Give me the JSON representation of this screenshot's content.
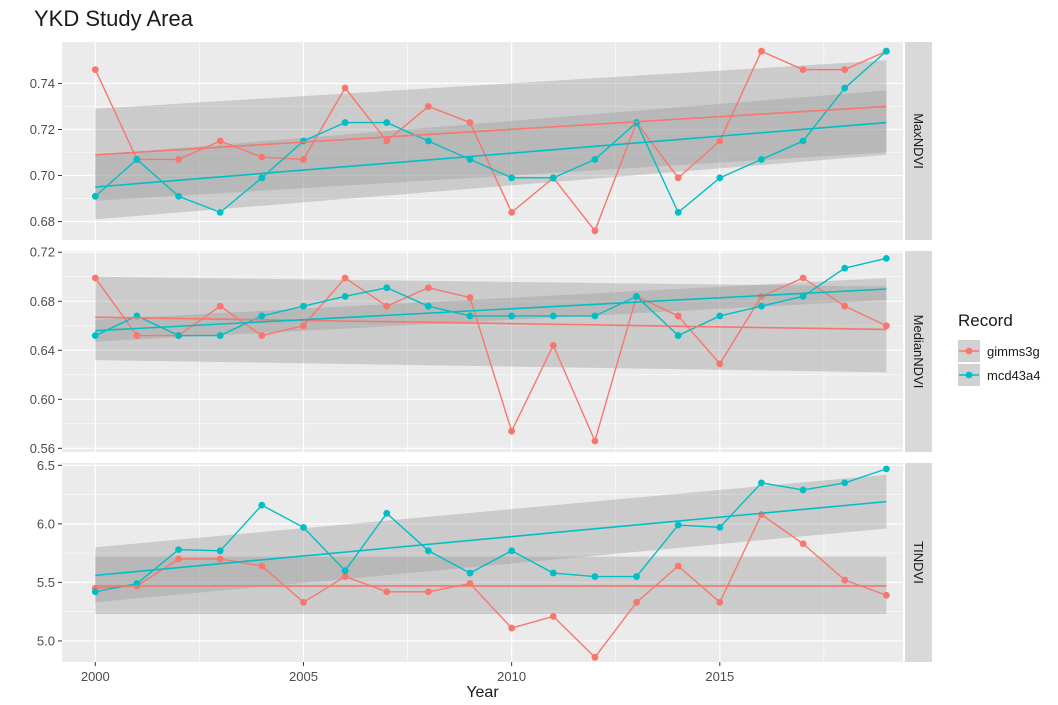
{
  "chart_data": {
    "type": "line",
    "title": "YKD Study Area",
    "xlabel": "Year",
    "x_ticks": [
      2000,
      2005,
      2010,
      2015
    ],
    "x_range": [
      1999.2,
      2019.4
    ],
    "grid": true,
    "legend": {
      "title": "Record",
      "position": "right",
      "entries": [
        {
          "name": "gimms3g",
          "color": "#F8766D"
        },
        {
          "name": "mcd43a4",
          "color": "#00BFC4"
        }
      ]
    },
    "years": [
      2000,
      2001,
      2002,
      2003,
      2004,
      2005,
      2006,
      2007,
      2008,
      2009,
      2010,
      2011,
      2012,
      2013,
      2014,
      2015,
      2016,
      2017,
      2018,
      2019
    ],
    "panels": [
      {
        "strip": "MaxNDVI",
        "y_range": [
          0.672,
          0.758
        ],
        "y_ticks": [
          0.68,
          0.7,
          0.72,
          0.74
        ],
        "y_tick_labels": [
          "0.68",
          "0.70",
          "0.72",
          "0.74"
        ],
        "series": [
          {
            "name": "gimms3g",
            "color": "#F8766D",
            "values": [
              0.746,
              0.707,
              0.707,
              0.715,
              0.708,
              0.707,
              0.738,
              0.715,
              0.73,
              0.723,
              0.684,
              0.699,
              0.676,
              0.723,
              0.699,
              0.715,
              0.754,
              0.746,
              0.746,
              0.754
            ],
            "trend": [
              0.709,
              0.73
            ],
            "band_lo": [
              0.689,
              0.71
            ],
            "band_hi": [
              0.729,
              0.75
            ]
          },
          {
            "name": "mcd43a4",
            "color": "#00BFC4",
            "values": [
              0.691,
              0.707,
              0.691,
              0.684,
              0.699,
              0.715,
              0.723,
              0.723,
              0.715,
              0.707,
              0.699,
              0.699,
              0.707,
              0.723,
              0.684,
              0.699,
              0.707,
              0.715,
              0.738,
              0.754
            ],
            "trend": [
              0.695,
              0.723
            ],
            "band_lo": [
              0.681,
              0.709
            ],
            "band_hi": [
              0.709,
              0.737
            ]
          }
        ]
      },
      {
        "strip": "MedianNDVI",
        "y_range": [
          0.557,
          0.721
        ],
        "y_ticks": [
          0.56,
          0.6,
          0.64,
          0.68,
          0.72
        ],
        "y_tick_labels": [
          "0.56",
          "0.60",
          "0.64",
          "0.68",
          "0.72"
        ],
        "series": [
          {
            "name": "gimms3g",
            "color": "#F8766D",
            "values": [
              0.699,
              0.652,
              0.652,
              0.676,
              0.652,
              0.66,
              0.699,
              0.676,
              0.691,
              0.683,
              0.574,
              0.644,
              0.566,
              0.684,
              0.668,
              0.629,
              0.684,
              0.699,
              0.676,
              0.66
            ],
            "trend": [
              0.667,
              0.657
            ],
            "band_lo": [
              0.632,
              0.622
            ],
            "band_hi": [
              0.7,
              0.692
            ]
          },
          {
            "name": "mcd43a4",
            "color": "#00BFC4",
            "values": [
              0.652,
              0.668,
              0.652,
              0.652,
              0.668,
              0.676,
              0.684,
              0.691,
              0.676,
              0.668,
              0.668,
              0.668,
              0.668,
              0.684,
              0.652,
              0.668,
              0.676,
              0.684,
              0.707,
              0.715
            ],
            "trend": [
              0.656,
              0.69
            ],
            "band_lo": [
              0.647,
              0.681
            ],
            "band_hi": [
              0.665,
              0.699
            ]
          }
        ]
      },
      {
        "strip": "TINDVI",
        "y_range": [
          4.82,
          6.52
        ],
        "y_ticks": [
          5.0,
          5.5,
          6.0,
          6.5
        ],
        "y_tick_labels": [
          "5.0",
          "5.5",
          "6.0",
          "6.5"
        ],
        "series": [
          {
            "name": "gimms3g",
            "color": "#F8766D",
            "values": [
              5.45,
              5.47,
              5.7,
              5.7,
              5.64,
              5.33,
              5.55,
              5.42,
              5.42,
              5.49,
              5.11,
              5.21,
              4.86,
              5.33,
              5.64,
              5.33,
              6.08,
              5.83,
              5.52,
              5.39
            ],
            "trend": [
              5.47,
              5.47
            ],
            "band_lo": [
              5.23,
              5.23
            ],
            "band_hi": [
              5.72,
              5.72
            ]
          },
          {
            "name": "mcd43a4",
            "color": "#00BFC4",
            "values": [
              5.42,
              5.49,
              5.78,
              5.77,
              6.16,
              5.97,
              5.6,
              6.09,
              5.77,
              5.58,
              5.77,
              5.58,
              5.55,
              5.55,
              5.99,
              5.97,
              6.35,
              6.29,
              6.35,
              6.47
            ],
            "trend": [
              5.56,
              6.19
            ],
            "band_lo": [
              5.33,
              5.96
            ],
            "band_hi": [
              5.8,
              6.42
            ]
          }
        ]
      }
    ]
  }
}
